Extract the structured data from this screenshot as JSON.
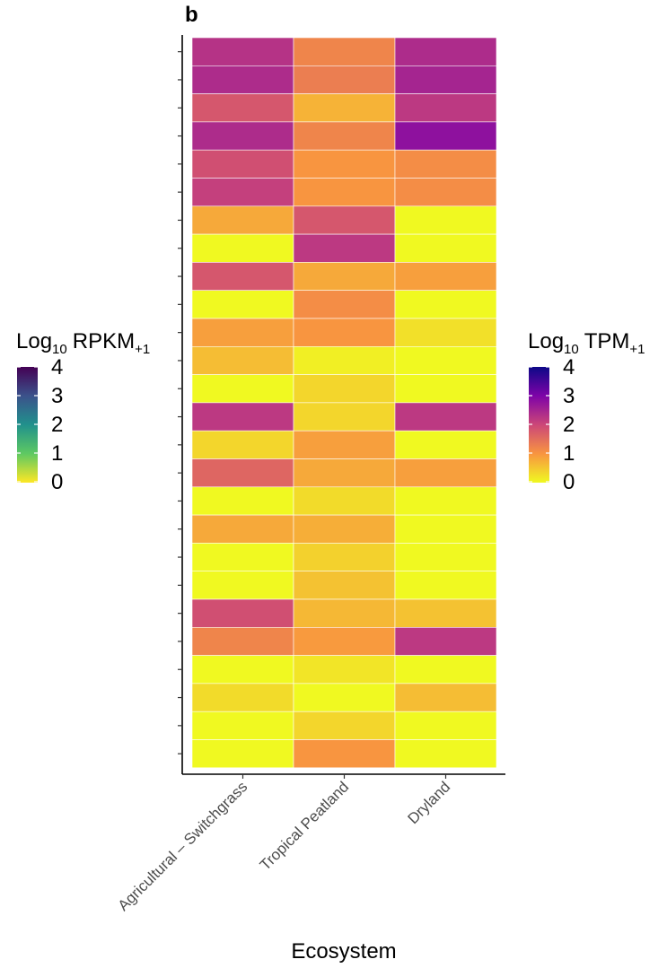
{
  "panel_label": "b",
  "chart_data": {
    "type": "heatmap",
    "categories": [
      "Agricultural – Switchgrass",
      "Tropical Peatland",
      "Dryland"
    ],
    "rows": 26,
    "values": [
      [
        2.3,
        1.2,
        2.4
      ],
      [
        2.4,
        1.3,
        2.5
      ],
      [
        1.8,
        0.7,
        2.2
      ],
      [
        2.4,
        1.2,
        2.8
      ],
      [
        1.9,
        1.0,
        1.1
      ],
      [
        2.1,
        1.0,
        1.1
      ],
      [
        0.8,
        1.8,
        0.0
      ],
      [
        0.0,
        2.2,
        0.0
      ],
      [
        1.8,
        0.8,
        0.9
      ],
      [
        0.0,
        1.1,
        0.0
      ],
      [
        0.9,
        1.0,
        0.25
      ],
      [
        0.6,
        0.1,
        0.0
      ],
      [
        0.0,
        0.35,
        0.0
      ],
      [
        2.2,
        0.35,
        2.2
      ],
      [
        0.35,
        0.9,
        0.0
      ],
      [
        1.6,
        0.8,
        0.9
      ],
      [
        0.0,
        0.3,
        0.0
      ],
      [
        0.8,
        0.75,
        0.0
      ],
      [
        0.0,
        0.4,
        0.0
      ],
      [
        0.0,
        0.55,
        0.0
      ],
      [
        1.9,
        0.65,
        0.55
      ],
      [
        1.2,
        0.95,
        2.2
      ],
      [
        0.0,
        0.2,
        0.0
      ],
      [
        0.3,
        0.0,
        0.6
      ],
      [
        0.0,
        0.35,
        0.0
      ],
      [
        0.0,
        1.0,
        0.0
      ]
    ],
    "xlabel": "Ecosystem",
    "ylabel": "",
    "color_scale": {
      "name": "plasma",
      "range": [
        0,
        4
      ]
    },
    "legends": [
      {
        "title_main": "Log",
        "title_sub": "10",
        "title_rest": "RPKM",
        "title_sub2": "+1",
        "palette": "viridis",
        "ticks": [
          "4",
          "3",
          "2",
          "1",
          "0"
        ]
      },
      {
        "title_main": "Log",
        "title_sub": "10",
        "title_rest": "TPM",
        "title_sub2": "+1",
        "palette": "plasma",
        "ticks": [
          "4",
          "3",
          "2",
          "1",
          "0"
        ]
      }
    ]
  }
}
